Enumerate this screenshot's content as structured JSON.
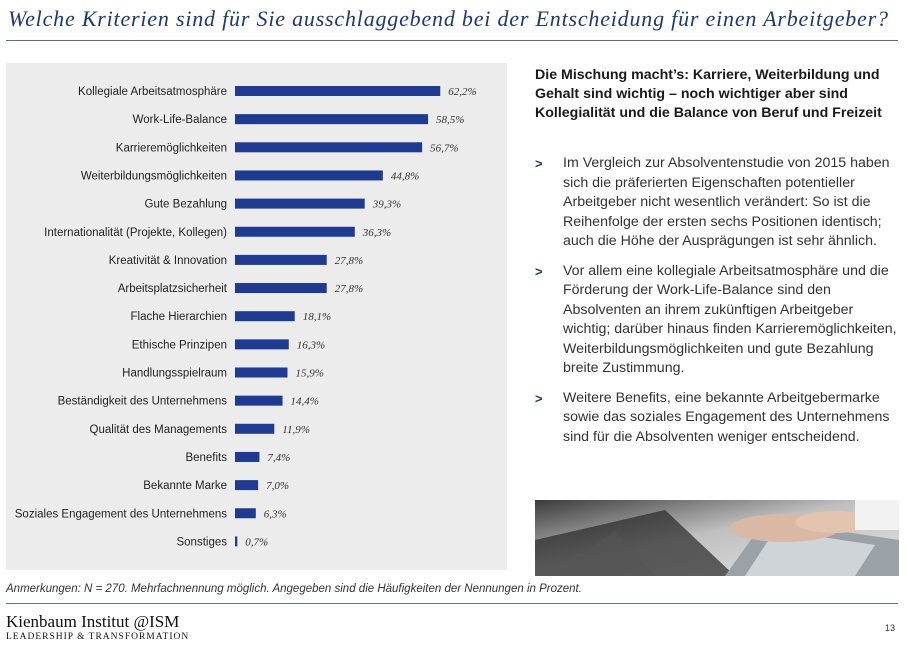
{
  "title": "Welche Kriterien sind für Sie ausschlaggebend bei der Entscheidung für einen Arbeitgeber?",
  "chart_data": {
    "type": "bar",
    "orientation": "horizontal",
    "categories": [
      "Kollegiale Arbeitsatmosphäre",
      "Work-Life-Balance",
      "Karrieremöglichkeiten",
      "Weiterbildungsmöglichkeiten",
      "Gute Bezahlung",
      "Internationalität (Projekte, Kollegen)",
      "Kreativität & Innovation",
      "Arbeitsplatzsicherheit",
      "Flache Hierarchien",
      "Ethische Prinzipen",
      "Handlungsspielraum",
      "Beständigkeit des Unternehmens",
      "Qualität des Managements",
      "Benefits",
      "Bekannte Marke",
      "Soziales Engagement des Unternehmens",
      "Sonstiges"
    ],
    "values": [
      62.2,
      58.5,
      56.7,
      44.8,
      39.3,
      36.3,
      27.8,
      27.8,
      18.1,
      16.3,
      15.9,
      14.4,
      11.9,
      7.4,
      7.0,
      6.3,
      0.7
    ],
    "value_labels": [
      "62,2%",
      "58,5%",
      "56,7%",
      "44,8%",
      "39,3%",
      "36,3%",
      "27,8%",
      "27,8%",
      "18,1%",
      "16,3%",
      "15,9%",
      "14,4%",
      "11,9%",
      "7,4%",
      "7,0%",
      "6,3%",
      "0,7%"
    ],
    "bar_color": "#1f3a93",
    "background_color": "#ececec",
    "grid": false
  },
  "headline": "Die Mischung macht’s: Karriere, Weiterbildung und Gehalt sind wichtig – noch wichtiger aber sind Kollegialität und die Balance von Beruf und Freizeit",
  "bullet_marker": ">",
  "bullets": [
    "Im Vergleich zur Absolventenstudie von 2015 haben sich die präferierten Eigenschaften potentieller Arbeitgeber nicht wesentlich verändert: So ist die Reihenfolge der ersten sechs Positionen identisch; auch die Höhe der Ausprägungen ist sehr ähnlich.",
    "Vor allem eine kollegiale Arbeitsatmosphäre und die Förderung der Work-Life-Balance sind den Absolventen an ihrem zukünftigen Arbeitgeber wichtig; darüber hinaus finden Karrieremöglichkeiten, Weiterbildungsmöglichkeiten und gute Bezahlung breite Zustimmung.",
    "Weitere Benefits, eine bekannte Arbeitgebermarke sowie das soziales Engagement des Unternehmens sind für die Absolventen weniger entscheidend."
  ],
  "note": "Anmerkungen: N = 270. Mehrfachnennung möglich. Angegeben sind die Häufigkeiten der Nennungen in Prozent.",
  "logo": {
    "main": "Kienbaum Institut @ISM",
    "sub": "LEADERSHIP & TRANSFORMATION"
  },
  "page_number": "13",
  "colors": {
    "accent": "#1f3a6e",
    "bar": "#1f3a93"
  }
}
